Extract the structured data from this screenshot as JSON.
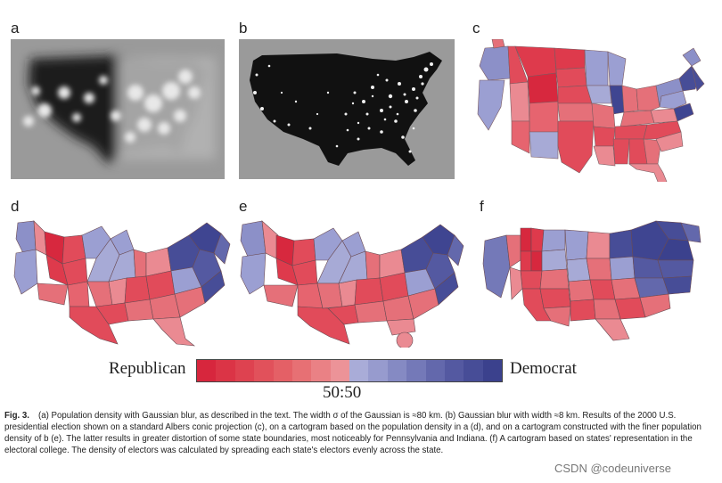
{
  "figure": {
    "panel_labels": [
      "a",
      "b",
      "c",
      "d",
      "e",
      "f"
    ],
    "legend": {
      "left_label": "Republican",
      "right_label": "Democrat",
      "center_label": "50:50",
      "colors": [
        "#d7263d",
        "#db3446",
        "#de4250",
        "#e1515b",
        "#e46066",
        "#e77074",
        "#ea8185",
        "#ec9398",
        "#a9acd8",
        "#979bce",
        "#858ac3",
        "#7479b8",
        "#6368ac",
        "#5459a1",
        "#474d97",
        "#3b418d"
      ]
    },
    "caption": {
      "fig_number": "Fig. 3.",
      "text": "(a) Population density with Gaussian blur, as described in the text. The width σ of the Gaussian is ≈80 km. (b) Gaussian blur with width ≈8 km. Results of the 2000 U.S. presidential election shown on a standard Albers conic projection (c), on a cartogram based on the population density in a (d), and on a cartogram constructed with the finer population density of b (e). The latter results in greater distortion of some state boundaries, most noticeably for Pennsylvania and Indiana. (f) A cartogram based on states' representation in the electoral college. The density of electors was calculated by spreading each state's electors evenly across the state."
    },
    "colors": {
      "republican": "#d7263d",
      "republican_light": "#ec9398",
      "democrat": "#3b418d",
      "democrat_light": "#a9acd8",
      "blur_gray": "#9a9a9a",
      "dark_map": "#111111"
    }
  },
  "watermark": "CSDN @codeuniverse"
}
